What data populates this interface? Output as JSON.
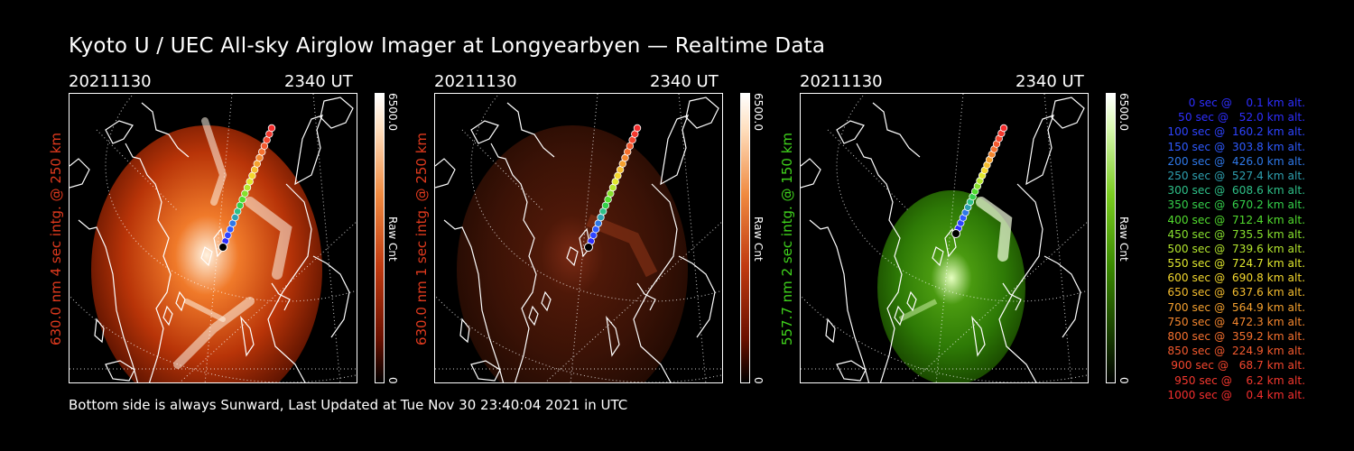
{
  "title": "Kyoto U / UEC All-sky Airglow Imager at Longyearbyen — Realtime Data",
  "footer": "Bottom side is always Sunward, Last Updated at Tue Nov 30 23:40:04 2021 in UTC",
  "panels": [
    {
      "date": "20211130",
      "time": "2340 UT",
      "ylabel": "630.0 nm 4 sec intg. @ 250 km",
      "label_color": "#e03a1e",
      "cbar_max": "6500.0",
      "cbar_min": "0",
      "cbar_unit": "Raw Cnt",
      "colormap": "red-high"
    },
    {
      "date": "20211130",
      "time": "2340 UT",
      "ylabel": "630.0 nm 1 sec intg. @ 250 km",
      "label_color": "#e03a1e",
      "cbar_max": "6500.0",
      "cbar_min": "0",
      "cbar_unit": "Raw Cnt",
      "colormap": "red-low"
    },
    {
      "date": "20211130",
      "time": "2340 UT",
      "ylabel": "557.7 nm 2 sec intg. @ 150 km",
      "label_color": "#3fd21c",
      "cbar_max": "6500.0",
      "cbar_min": "0",
      "cbar_unit": "Raw Cnt",
      "colormap": "green"
    }
  ],
  "legend": [
    {
      "text": "   0 sec @    0.1 km alt.",
      "color": "#2e2eff"
    },
    {
      "text": "  50 sec @   52.0 km alt.",
      "color": "#2e2eff"
    },
    {
      "text": " 100 sec @  160.2 km alt.",
      "color": "#2e44ff"
    },
    {
      "text": " 150 sec @  303.8 km alt.",
      "color": "#2e5aff"
    },
    {
      "text": " 200 sec @  426.0 km alt.",
      "color": "#2e78e8"
    },
    {
      "text": " 250 sec @  527.4 km alt.",
      "color": "#2ea0b0"
    },
    {
      "text": " 300 sec @  608.6 km alt.",
      "color": "#2ec088"
    },
    {
      "text": " 350 sec @  670.2 km alt.",
      "color": "#34d04a"
    },
    {
      "text": " 400 sec @  712.4 km alt.",
      "color": "#52dc2e"
    },
    {
      "text": " 450 sec @  735.5 km alt.",
      "color": "#86e02e"
    },
    {
      "text": " 500 sec @  739.6 km alt.",
      "color": "#b4e62e"
    },
    {
      "text": " 550 sec @  724.7 km alt.",
      "color": "#e0e82e"
    },
    {
      "text": " 600 sec @  690.8 km alt.",
      "color": "#f4d82e"
    },
    {
      "text": " 650 sec @  637.6 km alt.",
      "color": "#f4bc2e"
    },
    {
      "text": " 700 sec @  564.9 km alt.",
      "color": "#f4a02e"
    },
    {
      "text": " 750 sec @  472.3 km alt.",
      "color": "#f4862e"
    },
    {
      "text": " 800 sec @  359.2 km alt.",
      "color": "#f4702e"
    },
    {
      "text": " 850 sec @  224.9 km alt.",
      "color": "#f45a2e"
    },
    {
      "text": " 900 sec @   68.7 km alt.",
      "color": "#f4462e"
    },
    {
      "text": " 950 sec @    6.2 km alt.",
      "color": "#f4382e"
    },
    {
      "text": "1000 sec @    0.4 km alt.",
      "color": "#f42e2e"
    }
  ]
}
